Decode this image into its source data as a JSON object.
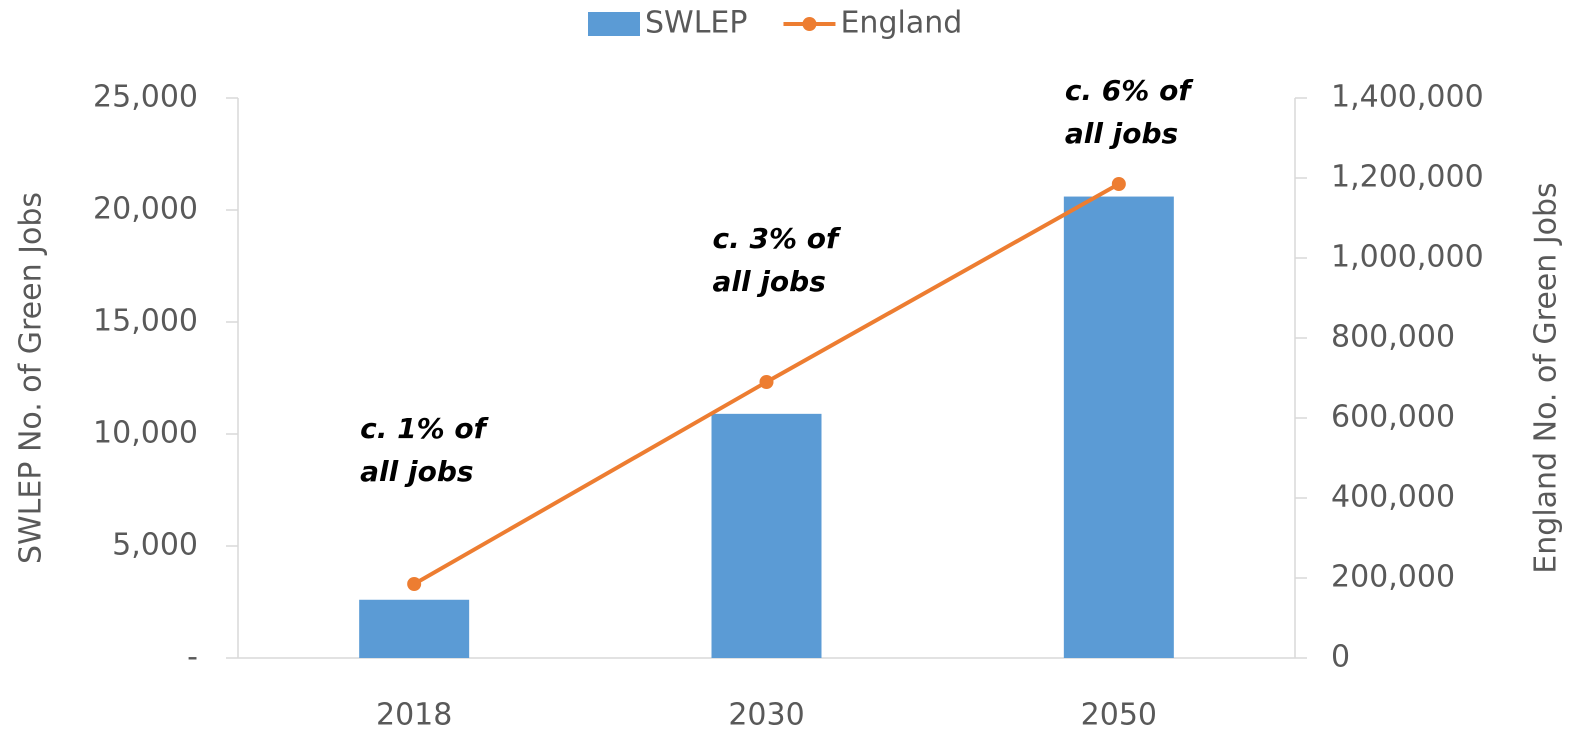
{
  "chart_data": {
    "type": "bar-line",
    "categories": [
      "2018",
      "2030",
      "2050"
    ],
    "series": [
      {
        "name": "SWLEP",
        "color": "#5b9bd5",
        "type": "bar",
        "axis": "y",
        "values": [
          2600,
          10900,
          20600
        ]
      },
      {
        "name": "England",
        "color": "#ed7d31",
        "type": "line",
        "axis": "y2",
        "values": [
          185000,
          690000,
          1185000
        ]
      }
    ],
    "ylabel": "SWLEP No. of Green Jobs",
    "y2label": "England No. of Green Jobs",
    "ylim": [
      0,
      25000
    ],
    "yticks": [
      {
        "value": 0,
        "label": "-"
      },
      {
        "value": 5000,
        "label": "5,000"
      },
      {
        "value": 10000,
        "label": "10,000"
      },
      {
        "value": 15000,
        "label": "15,000"
      },
      {
        "value": 20000,
        "label": "20,000"
      },
      {
        "value": 25000,
        "label": "25,000"
      }
    ],
    "y2lim": [
      0,
      1400000
    ],
    "y2ticks": [
      0,
      {
        "value": 200000,
        "label": "200,000"
      },
      {
        "value": 400000,
        "label": "400,000"
      },
      {
        "value": 600000,
        "label": "600,000"
      },
      {
        "value": 800000,
        "label": "800,000"
      },
      {
        "value": 1000000,
        "label": "1,000,000"
      },
      {
        "value": 1200000,
        "label": "1,200,000"
      },
      {
        "value": 1400000,
        "label": "1,400,000"
      }
    ],
    "annotations": [
      {
        "lines": [
          "c. 1% of",
          "all jobs"
        ]
      },
      {
        "lines": [
          "c. 3% of",
          "all jobs"
        ]
      },
      {
        "lines": [
          "c. 6% of",
          "all jobs"
        ]
      }
    ],
    "legend": "top",
    "grid": false
  }
}
